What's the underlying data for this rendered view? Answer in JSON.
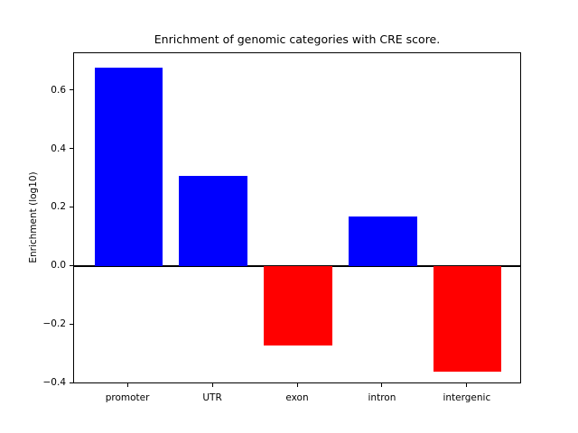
{
  "chart_data": {
    "type": "bar",
    "title": "Enrichment of genomic categories with CRE score.",
    "xlabel": "",
    "ylabel": "Enrichment (log10)",
    "categories": [
      "promoter",
      "UTR",
      "exon",
      "intron",
      "intergenic"
    ],
    "values": [
      0.68,
      0.31,
      -0.27,
      0.17,
      -0.36
    ],
    "positive_color": "#0000ff",
    "negative_color": "#ff0000",
    "zero_line": true,
    "grid": false,
    "legend": "none",
    "bar_width": 0.8,
    "xlim": [
      -0.64,
      4.64
    ],
    "ylim": [
      -0.402,
      0.728
    ],
    "yticks": [
      {
        "value": 0.6,
        "label": "0.6"
      },
      {
        "value": 0.4,
        "label": "0.4"
      },
      {
        "value": 0.2,
        "label": "0.2"
      },
      {
        "value": 0.0,
        "label": "0.0"
      },
      {
        "value": -0.2,
        "label": "−0.2"
      },
      {
        "value": -0.4,
        "label": "−0.4"
      }
    ]
  }
}
